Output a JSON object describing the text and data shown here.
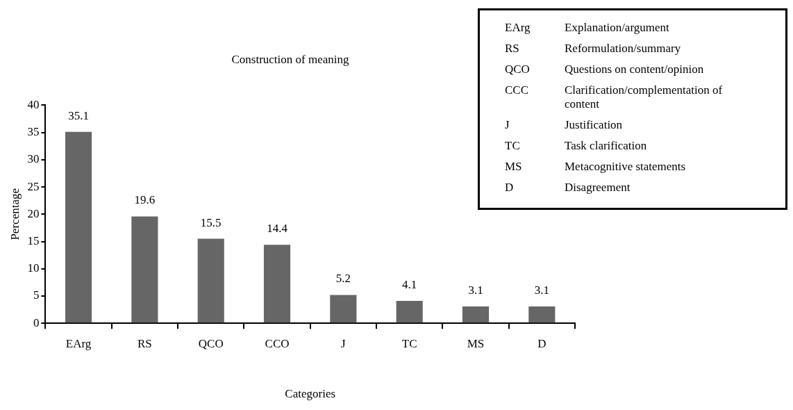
{
  "chart_data": {
    "type": "bar",
    "title": "Construction of meaning",
    "xlabel": "Categories",
    "ylabel": "Percentage",
    "categories": [
      "EArg",
      "RS",
      "QCO",
      "CCO",
      "J",
      "TC",
      "MS",
      "D"
    ],
    "values": [
      35.1,
      19.6,
      15.5,
      14.4,
      5.2,
      4.1,
      3.1,
      3.1
    ],
    "color": "#666666",
    "ylim": [
      0,
      40
    ],
    "yticks": [
      0,
      5,
      10,
      15,
      20,
      25,
      30,
      35,
      40
    ],
    "grid": false,
    "data_labels": true,
    "annotations": [
      "EArg Explanation/argument",
      "RS Reformulation/summary",
      "QCO Questions on content/opinion",
      "CCC Clarification/complementation of content",
      "J Justification",
      "TC Task clarification",
      "MS Metacognitive statements",
      "D Disagreement"
    ]
  }
}
